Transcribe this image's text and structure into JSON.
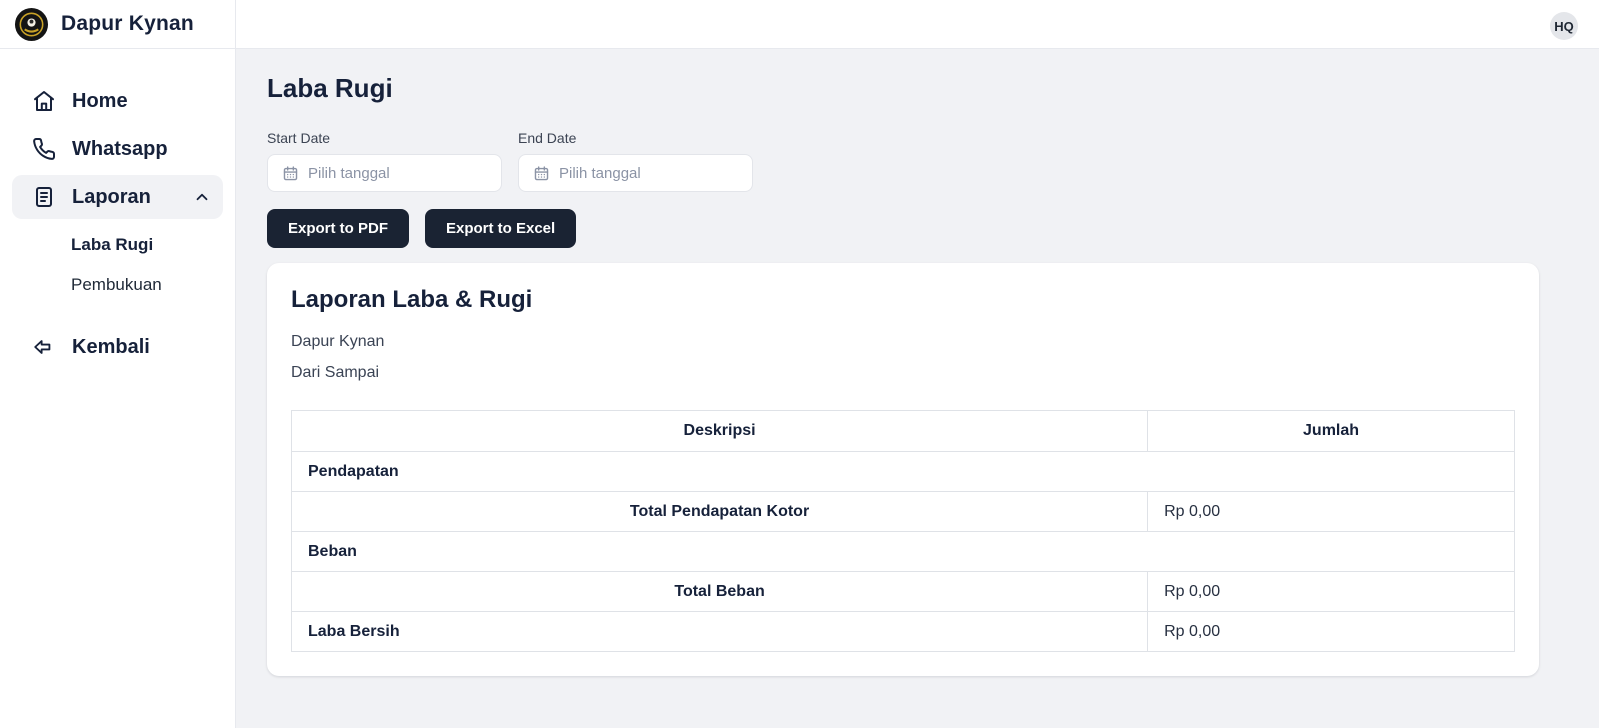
{
  "brand": {
    "name": "Dapur Kynan"
  },
  "topbar": {
    "avatar_initials": "HQ"
  },
  "sidebar": {
    "items": [
      {
        "label": "Home",
        "icon": "home-icon"
      },
      {
        "label": "Whatsapp",
        "icon": "phone-icon"
      },
      {
        "label": "Laporan",
        "icon": "report-icon",
        "expanded": true
      }
    ],
    "sub_items": [
      {
        "label": "Laba Rugi",
        "active": true
      },
      {
        "label": "Pembukuan",
        "active": false
      }
    ],
    "back_label": "Kembali"
  },
  "main": {
    "page_title": "Laba Rugi",
    "filters": {
      "start_date_label": "Start Date",
      "end_date_label": "End Date",
      "date_placeholder": "Pilih tanggal",
      "start_date_value": "",
      "end_date_value": ""
    },
    "actions": {
      "export_pdf_label": "Export to PDF",
      "export_excel_label": "Export to Excel"
    },
    "report": {
      "title": "Laporan Laba & Rugi",
      "company": "Dapur Kynan",
      "period": "Dari Sampai",
      "table": {
        "headers": [
          "Deskripsi",
          "Jumlah"
        ],
        "rows": [
          {
            "type": "section",
            "label": "Pendapatan",
            "value": null
          },
          {
            "type": "total",
            "label": "Total Pendapatan Kotor",
            "value": "Rp 0,00"
          },
          {
            "type": "section",
            "label": "Beban",
            "value": null
          },
          {
            "type": "total",
            "label": "Total Beban",
            "value": "Rp 0,00"
          },
          {
            "type": "net",
            "label": "Laba Bersih",
            "value": "Rp 0,00"
          }
        ]
      }
    }
  },
  "colors": {
    "primary_dark": "#1a2333",
    "page_background": "#f1f2f5",
    "border": "#e7e9ee",
    "logo_gold": "#c9a227",
    "avatar_background": "#e4e6ea"
  }
}
